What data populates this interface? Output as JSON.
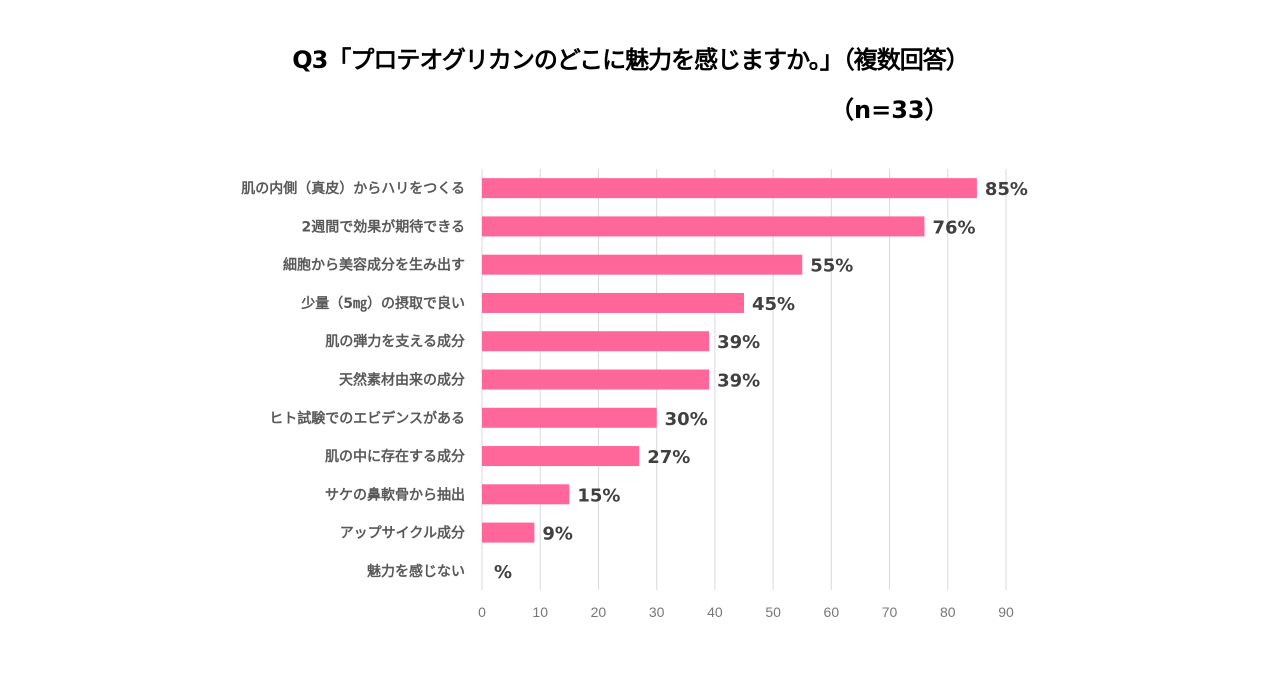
{
  "chart_data": {
    "type": "bar",
    "orientation": "horizontal",
    "title": "Q3「プロテオグリカンのどこに魅力を感じますか。」（複数回答）",
    "subtitle": "（n=33）",
    "categories": [
      "肌の内側（真皮）からハリをつくる",
      "2週間で効果が期待できる",
      "細胞から美容成分を生み出す",
      "少量（5㎎）の摂取で良い",
      "肌の弾力を支える成分",
      "天然素材由来の成分",
      "ヒト試験でのエビデンスがある",
      "肌の中に存在する成分",
      "サケの鼻軟骨から抽出",
      "アップサイクル成分",
      "魅力を感じない"
    ],
    "values": [
      85,
      76,
      55,
      45,
      39,
      39,
      30,
      27,
      15,
      9,
      0
    ],
    "data_labels": [
      "85%",
      "76%",
      "55%",
      "45%",
      "39%",
      "39%",
      "30%",
      "27%",
      "15%",
      "9%",
      "%"
    ],
    "xlim": [
      0,
      90
    ],
    "xticks": [
      "0",
      "10",
      "20",
      "30",
      "40",
      "50",
      "60",
      "70",
      "80",
      "90"
    ],
    "grid": true,
    "bar_color": "#FF6699"
  }
}
